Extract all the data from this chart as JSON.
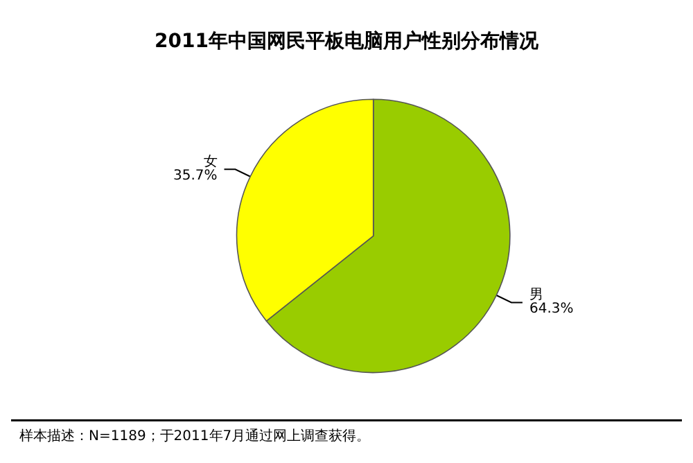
{
  "chart_data": {
    "type": "pie",
    "title": "2011年中国网民平板电脑用户性别分布情况",
    "categories": [
      "男",
      "女"
    ],
    "values": [
      64.3,
      35.7
    ],
    "colors": [
      "#99cc00",
      "#ffff00"
    ],
    "value_labels": [
      "64.3%",
      "35.7%"
    ],
    "legend": false,
    "annotations": [
      "样本描述：N=1189；于2011年7月通过网上调查获得。"
    ]
  }
}
